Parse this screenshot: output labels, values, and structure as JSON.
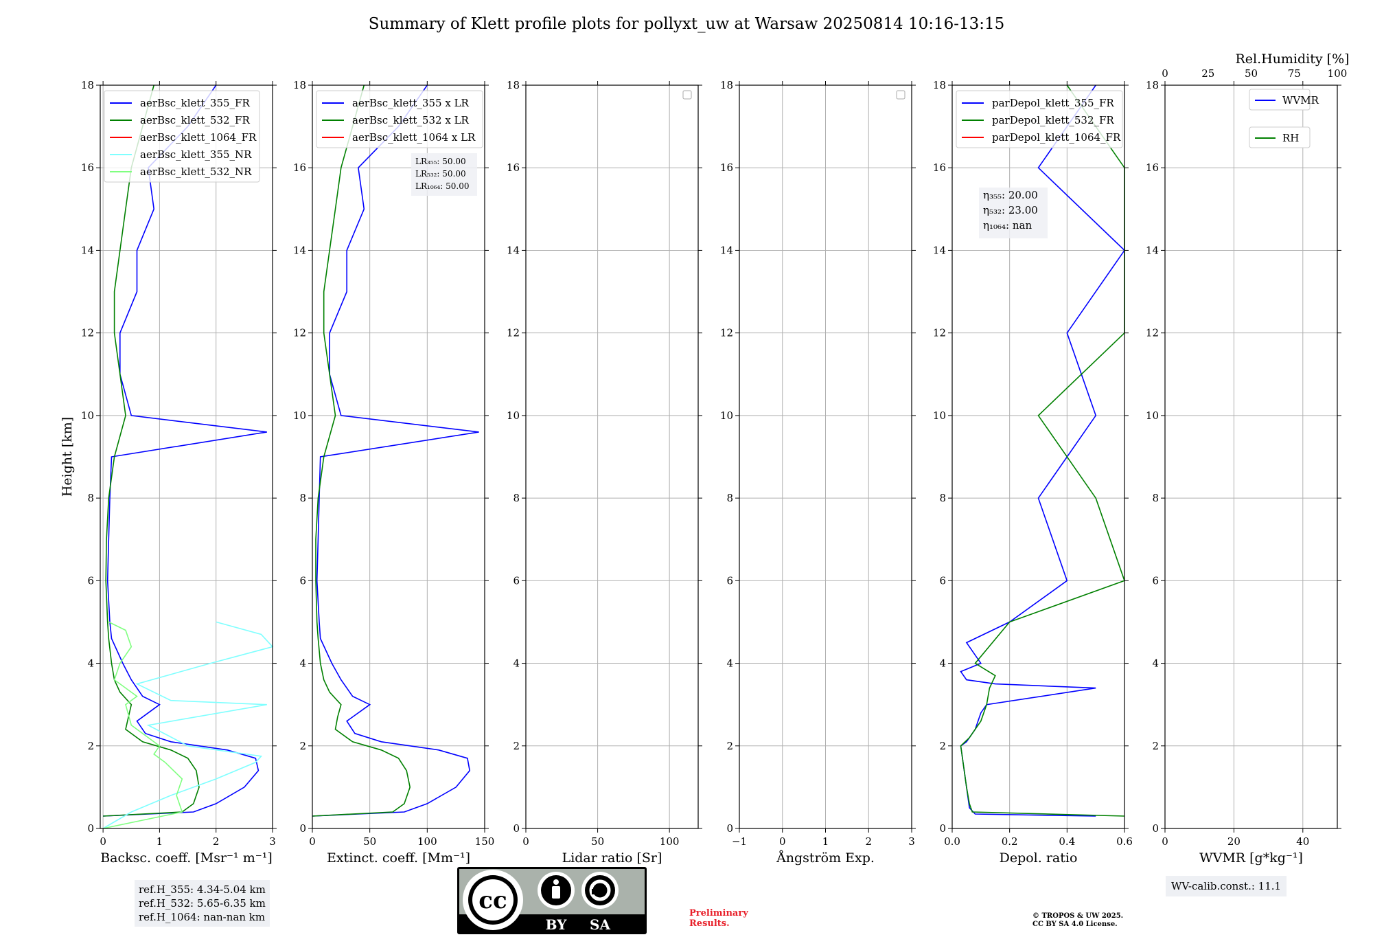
{
  "figure": {
    "title": "Summary of Klett profile plots for pollyxt_uw at Warsaw 20250814 10:16-13:15",
    "ylabel": "Height [km]"
  },
  "chart_data": [
    {
      "type": "line",
      "panel": "backscatter",
      "xlabel": "Backsc. coeff. [Msr⁻¹ m⁻¹]",
      "ylabel": "Height [km]",
      "xlim": [
        -0.05,
        3
      ],
      "ylim": [
        0,
        18
      ],
      "xticks": [
        0,
        1,
        2,
        3
      ],
      "yticks": [
        0,
        2,
        4,
        6,
        8,
        10,
        12,
        14,
        16,
        18
      ],
      "grid": true,
      "legend_position": "top-left",
      "series": [
        {
          "name": "aerBsc_klett_355_FR",
          "color": "#0000ff",
          "y": [
            0.3,
            0.4,
            0.6,
            1.0,
            1.4,
            1.7,
            1.9,
            2.1,
            2.3,
            2.6,
            3.0,
            3.2,
            3.6,
            4.0,
            4.6,
            5.0,
            6.0,
            7.0,
            8.0,
            9.0,
            9.6,
            10.0,
            11.0,
            12.0,
            13.0,
            14.0,
            15.0,
            16.0,
            17.0,
            18.0
          ],
          "x": [
            0.0,
            1.6,
            2.0,
            2.5,
            2.75,
            2.7,
            2.2,
            1.2,
            0.75,
            0.6,
            1.0,
            0.7,
            0.5,
            0.35,
            0.15,
            0.12,
            0.08,
            0.1,
            0.12,
            0.15,
            2.9,
            0.5,
            0.3,
            0.3,
            0.6,
            0.6,
            0.9,
            0.8,
            1.5,
            2.0
          ]
        },
        {
          "name": "aerBsc_klett_532_FR",
          "color": "#008000",
          "y": [
            0.3,
            0.4,
            0.6,
            1.0,
            1.4,
            1.7,
            1.9,
            2.1,
            2.4,
            2.7,
            3.0,
            3.3,
            3.6,
            4.0,
            4.6,
            5.0,
            6.0,
            7.0,
            8.0,
            9.0,
            10.0,
            11.0,
            12.0,
            13.0,
            14.0,
            15.0,
            16.0,
            17.0,
            18.0
          ],
          "x": [
            0.0,
            1.4,
            1.6,
            1.7,
            1.65,
            1.5,
            1.2,
            0.7,
            0.4,
            0.45,
            0.5,
            0.3,
            0.2,
            0.15,
            0.1,
            0.08,
            0.05,
            0.06,
            0.1,
            0.2,
            0.4,
            0.3,
            0.2,
            0.2,
            0.3,
            0.4,
            0.5,
            0.7,
            0.9
          ]
        },
        {
          "name": "aerBsc_klett_1064_FR",
          "color": "#ff0000",
          "y": [],
          "x": []
        },
        {
          "name": "aerBsc_klett_355_NR",
          "color": "#7fffff",
          "y": [
            0.0,
            0.4,
            0.8,
            1.2,
            1.6,
            1.75,
            2.0,
            2.5,
            3.0,
            3.1,
            3.5,
            4.0,
            4.4,
            4.7,
            5.0
          ],
          "x": [
            0.0,
            0.5,
            1.2,
            2.0,
            2.7,
            2.8,
            1.5,
            0.8,
            2.9,
            1.2,
            0.6,
            1.9,
            3.0,
            2.8,
            2.0
          ]
        },
        {
          "name": "aerBsc_klett_532_NR",
          "color": "#80ff80",
          "y": [
            0.0,
            0.4,
            0.8,
            1.2,
            1.6,
            1.8,
            2.0,
            2.5,
            3.0,
            3.2,
            3.6,
            4.0,
            4.4,
            4.8,
            5.0
          ],
          "x": [
            0.0,
            1.4,
            1.3,
            1.4,
            1.1,
            0.9,
            1.0,
            0.5,
            0.4,
            0.6,
            0.2,
            0.3,
            0.5,
            0.4,
            0.1
          ]
        }
      ]
    },
    {
      "type": "line",
      "panel": "extinction",
      "xlabel": "Extinct. coeff. [Mm⁻¹]",
      "xlim": [
        0,
        150
      ],
      "ylim": [
        0,
        18
      ],
      "xticks": [
        0,
        50,
        100,
        150
      ],
      "yticks": [
        0,
        2,
        4,
        6,
        8,
        10,
        12,
        14,
        16,
        18
      ],
      "grid": true,
      "legend_position": "top-left",
      "annotation": [
        "LR₃₅₅: 50.00",
        "LR₅₃₂: 50.00",
        "LR₁₀₆₄: 50.00"
      ],
      "series": [
        {
          "name": "aerBsc_klett_355 x LR",
          "color": "#0000ff",
          "y": [
            0.3,
            0.4,
            0.6,
            1.0,
            1.4,
            1.7,
            1.9,
            2.1,
            2.3,
            2.6,
            3.0,
            3.2,
            3.6,
            4.0,
            4.6,
            5.0,
            6.0,
            7.0,
            8.0,
            9.0,
            9.6,
            10.0,
            11.0,
            12.0,
            13.0,
            14.0,
            15.0,
            16.0,
            17.0,
            18.0
          ],
          "x": [
            0.0,
            80,
            100,
            125,
            137,
            135,
            110,
            60,
            37,
            30,
            50,
            35,
            25,
            17,
            7,
            6,
            4,
            5,
            6,
            7,
            145,
            25,
            15,
            15,
            30,
            30,
            45,
            40,
            75,
            100
          ]
        },
        {
          "name": "aerBsc_klett_532 x LR",
          "color": "#008000",
          "y": [
            0.3,
            0.4,
            0.6,
            1.0,
            1.4,
            1.7,
            1.9,
            2.1,
            2.4,
            2.7,
            3.0,
            3.3,
            3.6,
            4.0,
            4.6,
            5.0,
            6.0,
            7.0,
            8.0,
            9.0,
            10.0,
            11.0,
            12.0,
            13.0,
            14.0,
            15.0,
            16.0,
            17.0,
            18.0
          ],
          "x": [
            0.0,
            70,
            80,
            85,
            82,
            75,
            60,
            35,
            20,
            22,
            25,
            15,
            10,
            7,
            5,
            4,
            3,
            3,
            5,
            10,
            20,
            15,
            10,
            10,
            15,
            20,
            25,
            35,
            45
          ]
        },
        {
          "name": "aerBsc_klett_1064 x LR",
          "color": "#ff0000",
          "y": [],
          "x": []
        }
      ]
    },
    {
      "type": "line",
      "panel": "lidar-ratio",
      "xlabel": "Lidar ratio [Sr]",
      "xlim": [
        0,
        120
      ],
      "ylim": [
        0,
        18
      ],
      "xticks": [
        0,
        50,
        100
      ],
      "yticks": [
        0,
        2,
        4,
        6,
        8,
        10,
        12,
        14,
        16,
        18
      ],
      "grid": true,
      "legend_position": "top-right",
      "series": []
    },
    {
      "type": "line",
      "panel": "angstrom",
      "xlabel": "Ångström Exp.",
      "xlim": [
        -1,
        3
      ],
      "ylim": [
        0,
        18
      ],
      "xticks": [
        -1,
        0,
        1,
        2,
        3
      ],
      "yticks": [
        0,
        2,
        4,
        6,
        8,
        10,
        12,
        14,
        16,
        18
      ],
      "grid": true,
      "legend_position": "top-right",
      "series": []
    },
    {
      "type": "line",
      "panel": "depolarization",
      "xlabel": "Depol. ratio",
      "xlim": [
        0,
        0.6
      ],
      "ylim": [
        0,
        18
      ],
      "xticks": [
        0.0,
        0.2,
        0.4,
        0.6
      ],
      "xtick_labels": [
        "0.0",
        "0.2",
        "0.4",
        "0.6"
      ],
      "yticks": [
        0,
        2,
        4,
        6,
        8,
        10,
        12,
        14,
        16,
        18
      ],
      "grid": true,
      "legend_position": "top-left",
      "annotation": [
        "η₃₅₅: 20.00",
        "η₅₃₂: 23.00",
        "η₁₀₆₄: nan"
      ],
      "series": [
        {
          "name": "parDepol_klett_355_FR",
          "color": "#0000ff",
          "y": [
            0.3,
            0.35,
            0.5,
            1.0,
            1.5,
            2.0,
            2.1,
            2.4,
            2.8,
            3.0,
            3.4,
            3.5,
            3.6,
            3.8,
            4.0,
            4.5,
            5.0,
            6.0,
            8.0,
            10.0,
            12.0,
            14.0,
            16.0,
            18.0
          ],
          "x": [
            0.5,
            0.08,
            0.06,
            0.05,
            0.04,
            0.03,
            0.05,
            0.08,
            0.1,
            0.12,
            0.5,
            0.15,
            0.05,
            0.03,
            0.1,
            0.05,
            0.2,
            0.4,
            0.3,
            0.5,
            0.4,
            0.6,
            0.3,
            0.5
          ]
        },
        {
          "name": "parDepol_klett_532_FR",
          "color": "#008000",
          "y": [
            0.3,
            0.4,
            0.6,
            1.0,
            1.5,
            2.0,
            2.2,
            2.6,
            3.0,
            3.4,
            3.7,
            4.0,
            5.0,
            6.0,
            8.0,
            10.0,
            12.0,
            14.0,
            16.0,
            18.0
          ],
          "x": [
            0.6,
            0.07,
            0.06,
            0.05,
            0.04,
            0.03,
            0.06,
            0.1,
            0.12,
            0.13,
            0.15,
            0.08,
            0.2,
            0.6,
            0.5,
            0.3,
            0.6,
            0.6,
            0.6,
            0.4
          ]
        },
        {
          "name": "parDepol_klett_1064_FR",
          "color": "#ff0000",
          "y": [],
          "x": []
        }
      ]
    },
    {
      "type": "line",
      "panel": "water-vapor",
      "xlabel": "WVMR [g*kg⁻¹]",
      "xlabel_top": "Rel.Humidity [%]",
      "xlim": [
        0,
        50
      ],
      "xlim_top": [
        0,
        100
      ],
      "ylim": [
        0,
        18
      ],
      "xticks": [
        0,
        20,
        40
      ],
      "xticks_top": [
        0,
        25,
        50,
        75,
        100
      ],
      "yticks": [
        0,
        2,
        4,
        6,
        8,
        10,
        12,
        14,
        16,
        18
      ],
      "grid": true,
      "legend_position": "top-right",
      "series": [
        {
          "name": "WVMR",
          "color": "#0000ff",
          "y": [],
          "x": []
        },
        {
          "name": "RH",
          "color": "#008000",
          "y": [],
          "x": []
        }
      ]
    }
  ],
  "footer": {
    "ref_h_355": "ref.H_355: 4.34-5.04 km",
    "ref_h_532": "ref.H_532: 5.65-6.35 km",
    "ref_h_1064": "ref.H_1064: nan-nan km",
    "wv_calib": "WV-calib.const.: 11.1",
    "preliminary_1": "Preliminary",
    "preliminary_2": "Results.",
    "copyright_1": "© TROPOS & UW 2025.",
    "copyright_2": "CC BY SA 4.0 License.",
    "license_by": "BY",
    "license_sa": "SA",
    "license_cc": "cc"
  }
}
